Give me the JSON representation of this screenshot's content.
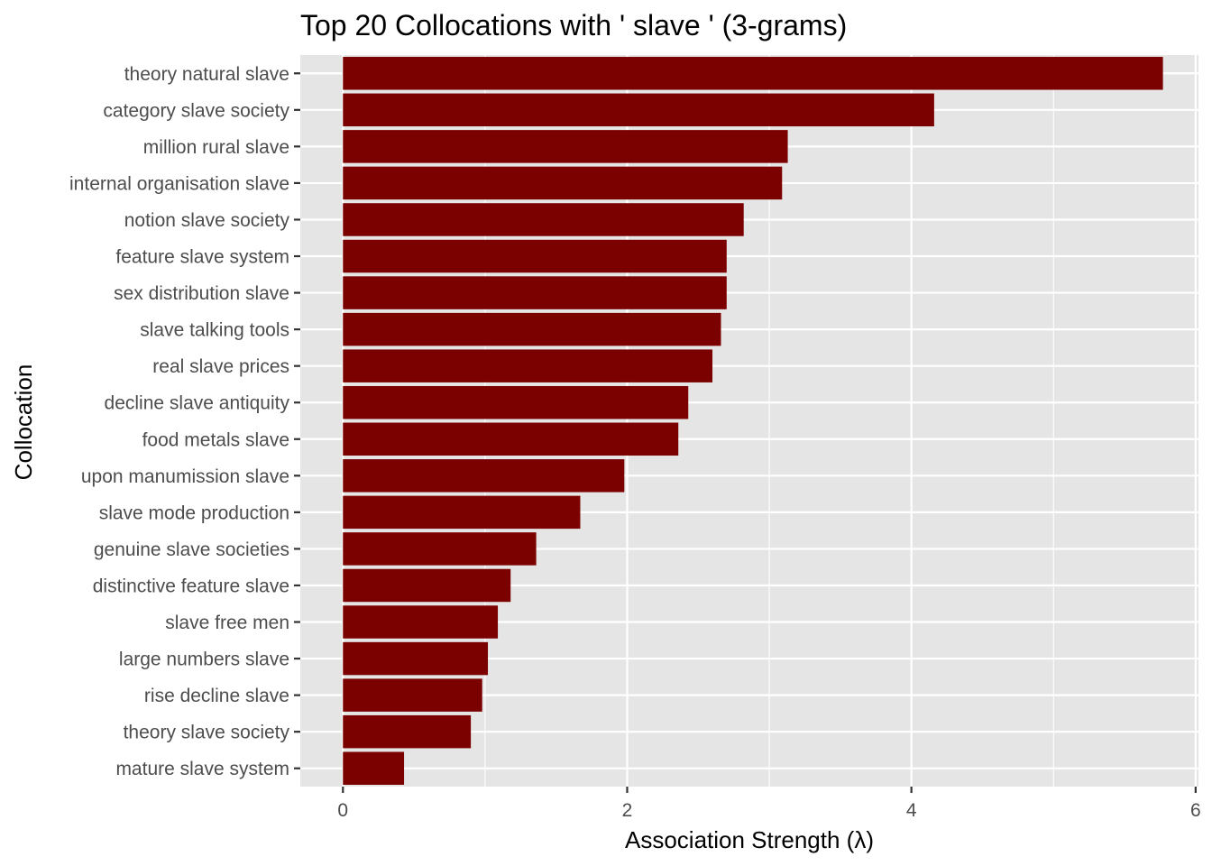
{
  "chart_data": {
    "type": "bar",
    "orientation": "horizontal",
    "title": "Top 20 Collocations with ' slave ' (3-grams)",
    "xlabel": "Association Strength (λ)",
    "ylabel": "Collocation",
    "xlim": [
      -0.3,
      6.02
    ],
    "x_ticks": [
      0,
      2,
      4,
      6
    ],
    "x_tick_labels": [
      "0",
      "2",
      "4",
      "6"
    ],
    "grid": true,
    "bar_color": "#7B0000",
    "panel_background": "#E5E5E5",
    "grid_color": "#FFFFFF",
    "categories": [
      "theory natural slave",
      "category slave society",
      "million rural slave",
      "internal organisation slave",
      "notion slave society",
      "feature slave system",
      "sex distribution slave",
      "slave talking tools",
      "real slave prices",
      "decline slave antiquity",
      "food metals slave",
      "upon manumission slave",
      "slave mode production",
      "genuine slave societies",
      "distinctive feature slave",
      "slave free men",
      "large numbers slave",
      "rise decline slave",
      "theory slave society",
      "mature slave system"
    ],
    "values": [
      5.77,
      4.16,
      3.13,
      3.09,
      2.82,
      2.7,
      2.7,
      2.66,
      2.6,
      2.43,
      2.36,
      1.98,
      1.67,
      1.36,
      1.18,
      1.09,
      1.02,
      0.98,
      0.9,
      0.43
    ]
  }
}
